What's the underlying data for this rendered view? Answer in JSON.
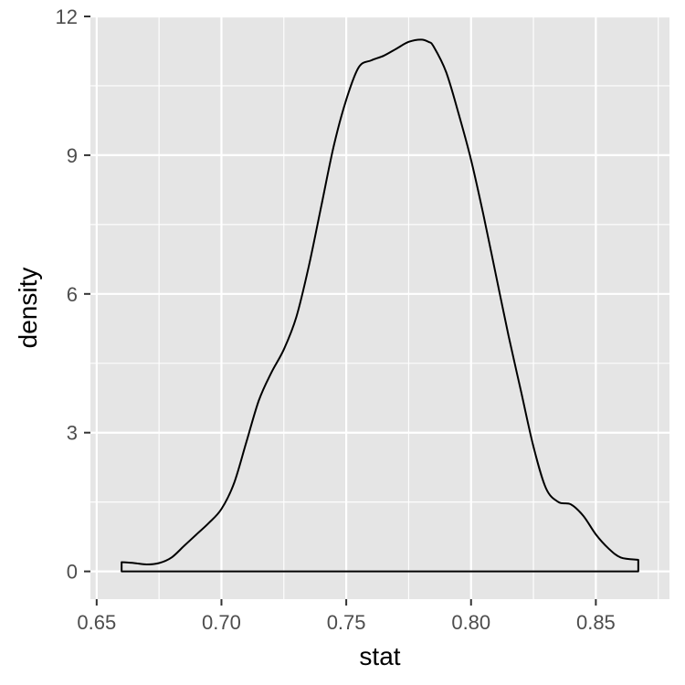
{
  "chart_data": {
    "type": "area",
    "title": "",
    "xlabel": "stat",
    "ylabel": "density",
    "xlim": [
      0.6475,
      0.8795
    ],
    "ylim": [
      -0.6,
      12.0
    ],
    "x_ticks": [
      0.65,
      0.7,
      0.75,
      0.8,
      0.85
    ],
    "x_tick_labels": [
      "0.65",
      "0.70",
      "0.75",
      "0.80",
      "0.85"
    ],
    "y_ticks": [
      0,
      3,
      6,
      9,
      12
    ],
    "y_tick_labels": [
      "0",
      "3",
      "6",
      "9",
      "12"
    ],
    "grid": true,
    "legend": "none",
    "colors": {
      "panel": "#e5e5e5",
      "grid": "#ffffff",
      "line": "#000000",
      "fill": "none",
      "tick_text": "#4d4d4d"
    },
    "series": [
      {
        "x": [
          0.66,
          0.665,
          0.67,
          0.675,
          0.68,
          0.685,
          0.69,
          0.695,
          0.7,
          0.705,
          0.71,
          0.715,
          0.72,
          0.725,
          0.73,
          0.735,
          0.74,
          0.745,
          0.75,
          0.755,
          0.76,
          0.765,
          0.77,
          0.775,
          0.78,
          0.783,
          0.785,
          0.79,
          0.795,
          0.8,
          0.805,
          0.81,
          0.815,
          0.82,
          0.825,
          0.83,
          0.835,
          0.84,
          0.845,
          0.85,
          0.855,
          0.86,
          0.867
        ],
        "y": [
          0.2,
          0.18,
          0.15,
          0.18,
          0.3,
          0.55,
          0.8,
          1.05,
          1.35,
          1.9,
          2.8,
          3.7,
          4.3,
          4.8,
          5.5,
          6.6,
          7.9,
          9.2,
          10.2,
          10.9,
          11.05,
          11.15,
          11.3,
          11.45,
          11.5,
          11.45,
          11.35,
          10.8,
          9.9,
          8.9,
          7.7,
          6.4,
          5.1,
          3.9,
          2.7,
          1.8,
          1.5,
          1.45,
          1.2,
          0.8,
          0.5,
          0.3,
          0.25
        ]
      }
    ]
  }
}
